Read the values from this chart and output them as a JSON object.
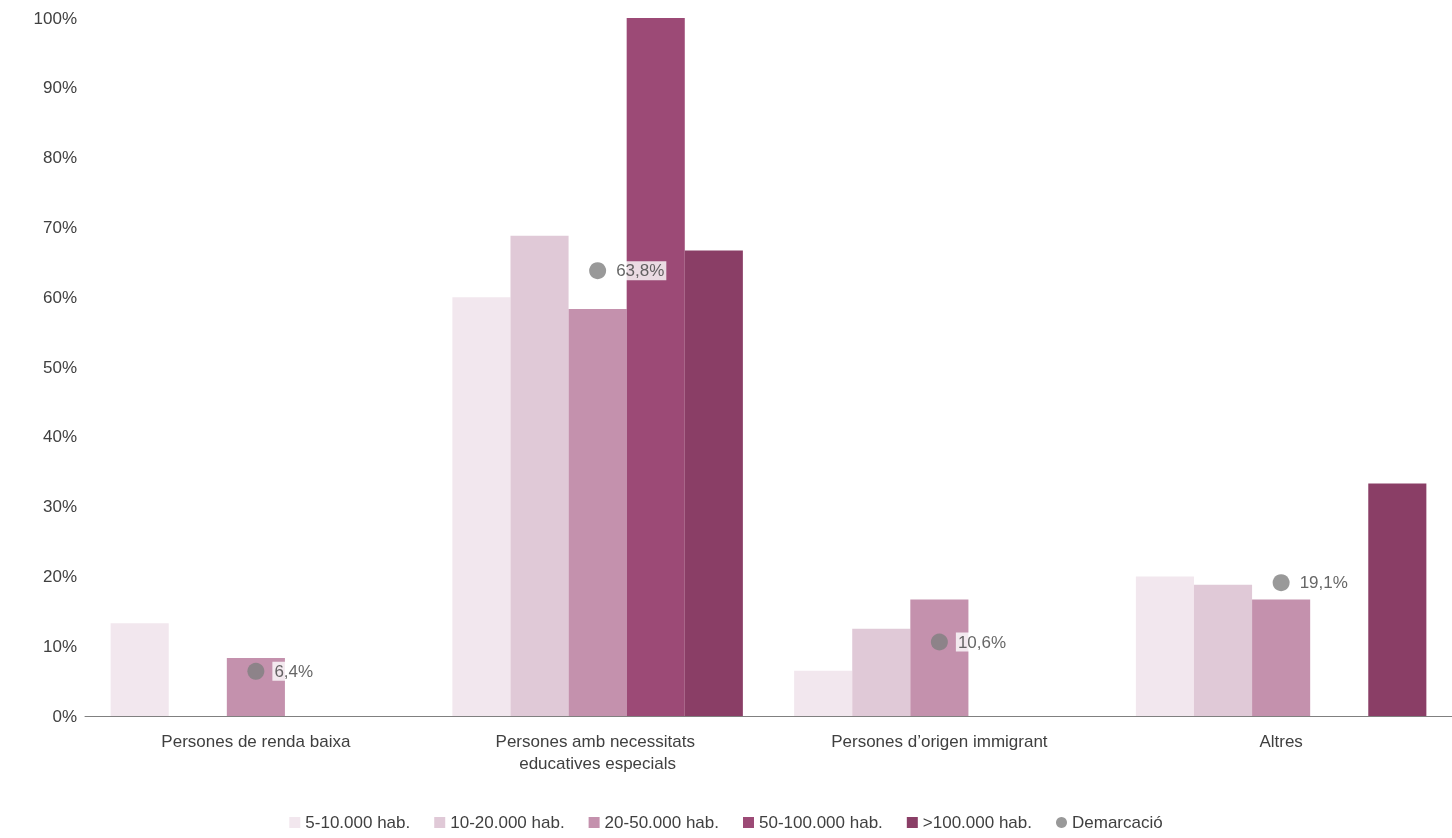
{
  "chart_data": {
    "type": "bar",
    "categories": [
      "Persones de renda baixa",
      "Persones amb necessitats educatives especials",
      "Persones d’origen immigrant",
      "Altres"
    ],
    "ylim": [
      0,
      100
    ],
    "yticks": [
      {
        "value": 0,
        "label": "0%"
      },
      {
        "value": 10,
        "label": "10%"
      },
      {
        "value": 20,
        "label": "20%"
      },
      {
        "value": 30,
        "label": "30%"
      },
      {
        "value": 40,
        "label": "40%"
      },
      {
        "value": 50,
        "label": "50%"
      },
      {
        "value": 60,
        "label": "60%"
      },
      {
        "value": 70,
        "label": "70%"
      },
      {
        "value": 80,
        "label": "80%"
      },
      {
        "value": 90,
        "label": "90%"
      },
      {
        "value": 100,
        "label": "100%"
      }
    ],
    "grid": false,
    "legend": "bottom",
    "series": [
      {
        "name": "5-10.000 hab.",
        "color": "#f2e7ee",
        "values": [
          13.3,
          60,
          6.5,
          20
        ]
      },
      {
        "name": "10-20.000 hab.",
        "color": "#e0c9d7",
        "values": [
          null,
          68.8,
          12.5,
          18.8
        ]
      },
      {
        "name": "20-50.000 hab.",
        "color": "#c491ad",
        "values": [
          8.3,
          58.3,
          16.7,
          16.7
        ]
      },
      {
        "name": "50-100.000 hab.",
        "color": "#9c4a76",
        "values": [
          null,
          100,
          null,
          null
        ]
      },
      {
        "name": ">100.000 hab.",
        "color": "#8a3e66",
        "values": [
          null,
          66.7,
          null,
          33.3
        ]
      },
      {
        "name": "Demarcació",
        "type": "scatter",
        "marker": "circle",
        "color": "#808080",
        "x": [
          "Persones de renda baixa",
          "Persones amb necessitats educatives especials",
          "Persones d’origen immigrant",
          "Altres"
        ],
        "values": [
          6.4,
          63.8,
          10.6,
          19.1
        ],
        "value_labels": [
          "6,4%",
          "63,8%",
          "10,6%",
          "19,1%"
        ]
      }
    ]
  }
}
